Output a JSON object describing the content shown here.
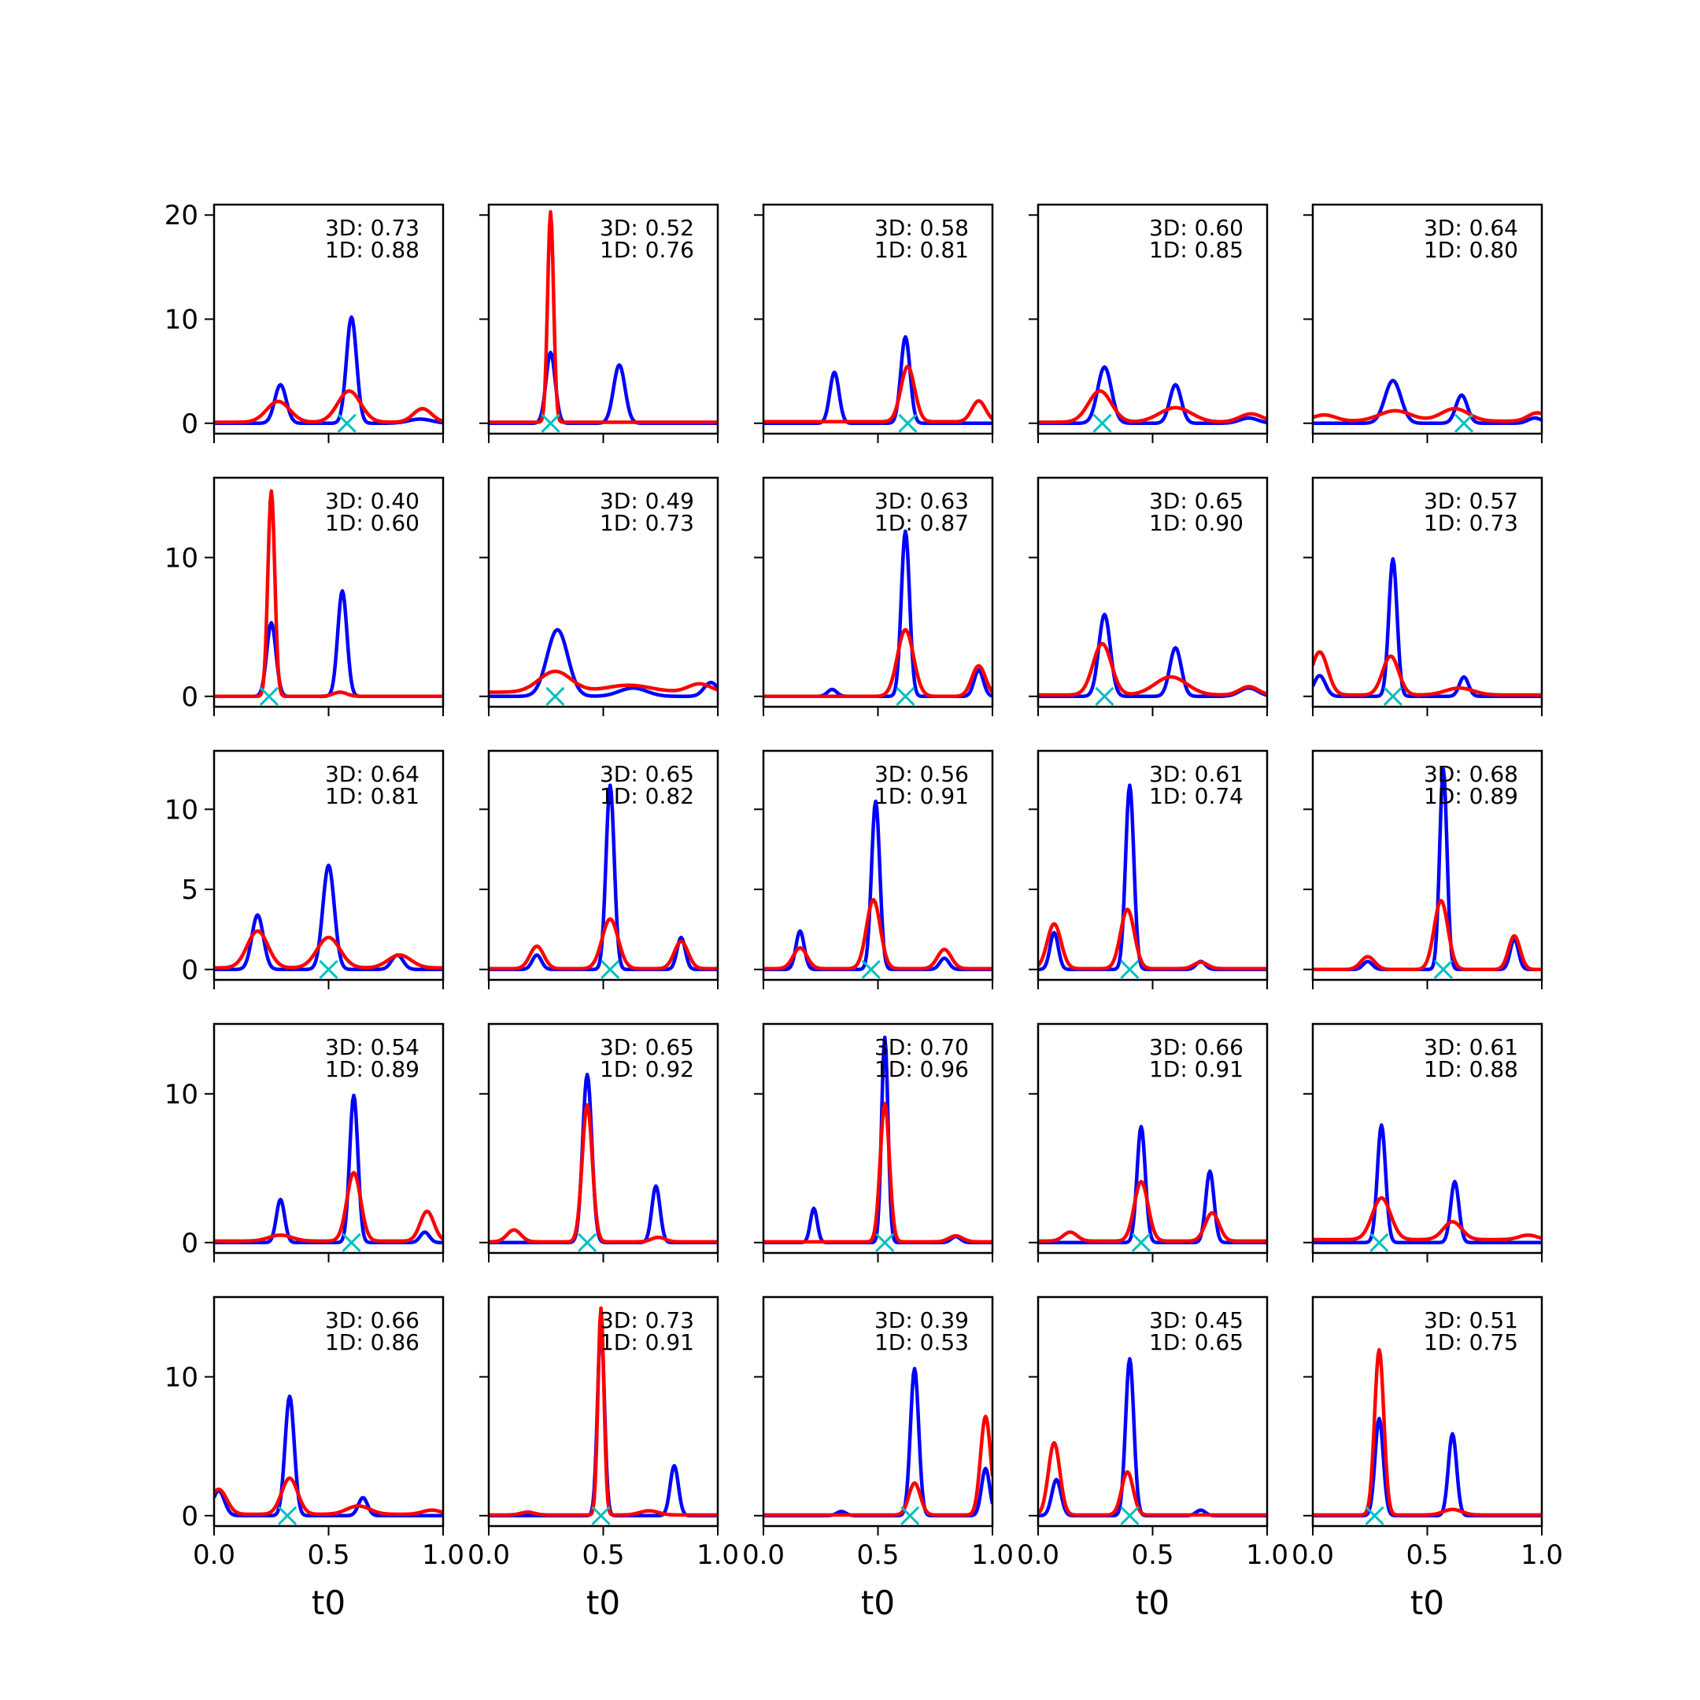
{
  "figure": {
    "rows": 5,
    "cols": 5,
    "xlabel": "t0",
    "xticks": [
      "0.0",
      "0.5",
      "1.0"
    ],
    "row_yticks": [
      {
        "values": [
          0,
          10,
          20
        ],
        "labels": [
          "0",
          "10",
          "20"
        ],
        "ylim": [
          -1,
          21
        ]
      },
      {
        "values": [
          0,
          10
        ],
        "labels": [
          "0",
          "10"
        ],
        "ylim": [
          -0.75,
          15.75
        ]
      },
      {
        "values": [
          0,
          5,
          10
        ],
        "labels": [
          "0",
          "5",
          "10"
        ],
        "ylim": [
          -0.65,
          13.65
        ]
      },
      {
        "values": [
          0,
          10
        ],
        "labels": [
          "0",
          "10"
        ],
        "ylim": [
          -0.7,
          14.7
        ]
      },
      {
        "values": [
          0,
          10
        ],
        "labels": [
          "0",
          "10"
        ],
        "ylim": [
          -0.75,
          15.75
        ]
      }
    ],
    "colors": {
      "blue": "#0000ff",
      "red": "#ff0000",
      "marker": "#00bfbf"
    }
  },
  "chart_data": [
    {
      "type": "line",
      "label_3d": "3D: 0.73",
      "label_1d": "1D: 0.88",
      "marker_x": 0.58,
      "blue": [
        [
          0.29,
          3.7,
          0.025
        ],
        [
          0.6,
          10.2,
          0.022
        ],
        [
          0.9,
          0.4,
          0.05
        ]
      ],
      "red": [
        [
          0.28,
          2.0,
          0.05
        ],
        [
          0.59,
          3.0,
          0.05
        ],
        [
          0.91,
          1.3,
          0.04
        ]
      ],
      "red_base": 0.1
    },
    {
      "type": "line",
      "label_3d": "3D: 0.52",
      "label_1d": "1D: 0.76",
      "marker_x": 0.27,
      "blue": [
        [
          0.27,
          6.8,
          0.02
        ],
        [
          0.57,
          5.6,
          0.025
        ]
      ],
      "red": [
        [
          0.27,
          20.2,
          0.013
        ]
      ],
      "red_base": 0.1
    },
    {
      "type": "line",
      "label_3d": "3D: 0.58",
      "label_1d": "1D: 0.81",
      "marker_x": 0.63,
      "blue": [
        [
          0.31,
          4.9,
          0.02
        ],
        [
          0.62,
          8.3,
          0.02
        ]
      ],
      "red": [
        [
          0.63,
          5.3,
          0.03
        ],
        [
          0.94,
          2.0,
          0.03
        ]
      ],
      "red_base": 0.15
    },
    {
      "type": "line",
      "label_3d": "3D: 0.60",
      "label_1d": "1D: 0.85",
      "marker_x": 0.28,
      "blue": [
        [
          0.29,
          5.4,
          0.03
        ],
        [
          0.6,
          3.7,
          0.025
        ],
        [
          0.92,
          0.5,
          0.04
        ]
      ],
      "red": [
        [
          0.27,
          3.0,
          0.05
        ],
        [
          0.6,
          1.4,
          0.07
        ],
        [
          0.93,
          0.8,
          0.05
        ]
      ],
      "red_base": 0.1
    },
    {
      "type": "line",
      "label_3d": "3D: 0.64",
      "label_1d": "1D: 0.80",
      "marker_x": 0.66,
      "blue": [
        [
          0.35,
          4.1,
          0.035
        ],
        [
          0.65,
          2.7,
          0.025
        ],
        [
          0.97,
          0.5,
          0.03
        ]
      ],
      "red": [
        [
          0.05,
          0.6,
          0.05
        ],
        [
          0.36,
          1.0,
          0.07
        ],
        [
          0.62,
          1.2,
          0.06
        ],
        [
          0.98,
          0.8,
          0.04
        ]
      ],
      "red_base": 0.2
    },
    {
      "type": "line",
      "label_3d": "3D: 0.40",
      "label_1d": "1D: 0.60",
      "marker_x": 0.24,
      "blue": [
        [
          0.25,
          5.3,
          0.02
        ],
        [
          0.56,
          7.6,
          0.02
        ]
      ],
      "red": [
        [
          0.25,
          14.8,
          0.015
        ],
        [
          0.55,
          0.3,
          0.03
        ]
      ],
      "red_base": 0.0
    },
    {
      "type": "line",
      "label_3d": "3D: 0.49",
      "label_1d": "1D: 0.73",
      "marker_x": 0.29,
      "blue": [
        [
          0.3,
          4.8,
          0.045
        ],
        [
          0.63,
          0.6,
          0.06
        ],
        [
          0.97,
          1.0,
          0.03
        ]
      ],
      "red": [
        [
          0.29,
          1.5,
          0.07
        ],
        [
          0.61,
          0.5,
          0.1
        ],
        [
          0.92,
          0.6,
          0.05
        ]
      ],
      "red_base": 0.3
    },
    {
      "type": "line",
      "label_3d": "3D: 0.63",
      "label_1d": "1D: 0.87",
      "marker_x": 0.62,
      "blue": [
        [
          0.3,
          0.5,
          0.02
        ],
        [
          0.62,
          11.9,
          0.018
        ],
        [
          0.94,
          1.9,
          0.02
        ]
      ],
      "red": [
        [
          0.62,
          4.8,
          0.035
        ],
        [
          0.94,
          2.2,
          0.03
        ]
      ],
      "red_base": 0.0
    },
    {
      "type": "line",
      "label_3d": "3D: 0.65",
      "label_1d": "1D: 0.90",
      "marker_x": 0.29,
      "blue": [
        [
          0.29,
          5.9,
          0.025
        ],
        [
          0.6,
          3.5,
          0.025
        ],
        [
          0.92,
          0.6,
          0.04
        ]
      ],
      "red": [
        [
          0.28,
          3.7,
          0.04
        ],
        [
          0.58,
          1.3,
          0.07
        ],
        [
          0.92,
          0.6,
          0.04
        ]
      ],
      "red_base": 0.1
    },
    {
      "type": "line",
      "label_3d": "3D: 0.57",
      "label_1d": "1D: 0.73",
      "marker_x": 0.35,
      "blue": [
        [
          0.03,
          1.5,
          0.025
        ],
        [
          0.35,
          9.9,
          0.018
        ],
        [
          0.66,
          1.4,
          0.02
        ]
      ],
      "red": [
        [
          0.03,
          3.1,
          0.035
        ],
        [
          0.34,
          2.8,
          0.035
        ],
        [
          0.64,
          0.5,
          0.06
        ]
      ],
      "red_base": 0.1
    },
    {
      "type": "line",
      "label_3d": "3D: 0.64",
      "label_1d": "1D: 0.81",
      "marker_x": 0.5,
      "blue": [
        [
          0.19,
          3.4,
          0.025
        ],
        [
          0.5,
          6.5,
          0.025
        ],
        [
          0.8,
          0.9,
          0.025
        ]
      ],
      "red": [
        [
          0.19,
          2.3,
          0.045
        ],
        [
          0.5,
          1.9,
          0.05
        ],
        [
          0.81,
          0.8,
          0.05
        ]
      ],
      "red_base": 0.1
    },
    {
      "type": "line",
      "label_3d": "3D: 0.65",
      "label_1d": "1D: 0.82",
      "marker_x": 0.53,
      "blue": [
        [
          0.21,
          0.9,
          0.02
        ],
        [
          0.53,
          11.5,
          0.018
        ],
        [
          0.84,
          2.0,
          0.018
        ]
      ],
      "red": [
        [
          0.21,
          1.4,
          0.03
        ],
        [
          0.53,
          3.1,
          0.035
        ],
        [
          0.84,
          1.7,
          0.03
        ]
      ],
      "red_base": 0.05
    },
    {
      "type": "line",
      "label_3d": "3D: 0.56",
      "label_1d": "1D: 0.91",
      "marker_x": 0.47,
      "blue": [
        [
          0.16,
          2.4,
          0.018
        ],
        [
          0.49,
          10.5,
          0.018
        ],
        [
          0.79,
          0.7,
          0.02
        ]
      ],
      "red": [
        [
          0.16,
          1.3,
          0.03
        ],
        [
          0.48,
          4.3,
          0.03
        ],
        [
          0.79,
          1.2,
          0.03
        ]
      ],
      "red_base": 0.05
    },
    {
      "type": "line",
      "label_3d": "3D: 0.61",
      "label_1d": "1D: 0.74",
      "marker_x": 0.4,
      "blue": [
        [
          0.07,
          2.3,
          0.018
        ],
        [
          0.4,
          11.5,
          0.018
        ],
        [
          0.71,
          0.5,
          0.02
        ]
      ],
      "red": [
        [
          0.07,
          2.8,
          0.03
        ],
        [
          0.39,
          3.7,
          0.03
        ],
        [
          0.71,
          0.4,
          0.03
        ]
      ],
      "red_base": 0.05
    },
    {
      "type": "line",
      "label_3d": "3D: 0.68",
      "label_1d": "1D: 0.89",
      "marker_x": 0.57,
      "blue": [
        [
          0.24,
          0.5,
          0.02
        ],
        [
          0.57,
          12.5,
          0.016
        ],
        [
          0.88,
          1.9,
          0.018
        ]
      ],
      "red": [
        [
          0.24,
          0.8,
          0.03
        ],
        [
          0.56,
          4.3,
          0.03
        ],
        [
          0.88,
          2.1,
          0.025
        ]
      ],
      "red_base": 0.0
    },
    {
      "type": "line",
      "label_3d": "3D: 0.54",
      "label_1d": "1D: 0.89",
      "marker_x": 0.6,
      "blue": [
        [
          0.29,
          2.9,
          0.018
        ],
        [
          0.61,
          9.9,
          0.018
        ],
        [
          0.92,
          0.7,
          0.02
        ]
      ],
      "red": [
        [
          0.29,
          0.4,
          0.05
        ],
        [
          0.61,
          4.6,
          0.03
        ],
        [
          0.93,
          2.0,
          0.03
        ]
      ],
      "red_base": 0.1
    },
    {
      "type": "line",
      "label_3d": "3D: 0.65",
      "label_1d": "1D: 0.92",
      "marker_x": 0.43,
      "blue": [
        [
          0.43,
          11.3,
          0.02
        ],
        [
          0.73,
          3.8,
          0.018
        ]
      ],
      "red": [
        [
          0.11,
          0.8,
          0.03
        ],
        [
          0.43,
          9.2,
          0.022
        ],
        [
          0.74,
          0.3,
          0.03
        ]
      ],
      "red_base": 0.05
    },
    {
      "type": "line",
      "label_3d": "3D: 0.70",
      "label_1d": "1D: 0.96",
      "marker_x": 0.53,
      "blue": [
        [
          0.22,
          2.3,
          0.015
        ],
        [
          0.53,
          13.8,
          0.014
        ],
        [
          0.84,
          0.4,
          0.02
        ]
      ],
      "red": [
        [
          0.53,
          9.3,
          0.02
        ],
        [
          0.84,
          0.4,
          0.03
        ]
      ],
      "red_base": 0.05
    },
    {
      "type": "line",
      "label_3d": "3D: 0.66",
      "label_1d": "1D: 0.91",
      "marker_x": 0.45,
      "blue": [
        [
          0.45,
          7.8,
          0.018
        ],
        [
          0.75,
          4.8,
          0.018
        ]
      ],
      "red": [
        [
          0.14,
          0.6,
          0.03
        ],
        [
          0.45,
          4.0,
          0.03
        ],
        [
          0.76,
          1.9,
          0.03
        ]
      ],
      "red_base": 0.1
    },
    {
      "type": "line",
      "label_3d": "3D: 0.61",
      "label_1d": "1D: 0.88",
      "marker_x": 0.29,
      "blue": [
        [
          0.3,
          7.9,
          0.018
        ],
        [
          0.62,
          4.1,
          0.018
        ]
      ],
      "red": [
        [
          0.3,
          2.8,
          0.04
        ],
        [
          0.61,
          1.2,
          0.04
        ],
        [
          0.94,
          0.3,
          0.04
        ]
      ],
      "red_base": 0.2
    },
    {
      "type": "line",
      "label_3d": "3D: 0.66",
      "label_1d": "1D: 0.86",
      "marker_x": 0.32,
      "blue": [
        [
          0.02,
          1.8,
          0.025
        ],
        [
          0.33,
          8.6,
          0.02
        ],
        [
          0.65,
          1.3,
          0.02
        ]
      ],
      "red": [
        [
          0.02,
          1.8,
          0.035
        ],
        [
          0.33,
          2.6,
          0.035
        ],
        [
          0.63,
          0.6,
          0.05
        ],
        [
          0.95,
          0.3,
          0.04
        ]
      ],
      "red_base": 0.1
    },
    {
      "type": "line",
      "label_3d": "3D: 0.73",
      "label_1d": "1D: 0.91",
      "marker_x": 0.49,
      "blue": [
        [
          0.49,
          13.7,
          0.015
        ],
        [
          0.81,
          3.6,
          0.018
        ]
      ],
      "red": [
        [
          0.49,
          14.9,
          0.013
        ],
        [
          0.17,
          0.2,
          0.03
        ],
        [
          0.7,
          0.3,
          0.04
        ]
      ],
      "red_base": 0.05
    },
    {
      "type": "line",
      "label_3d": "3D: 0.39",
      "label_1d": "1D: 0.53",
      "marker_x": 0.64,
      "blue": [
        [
          0.34,
          0.3,
          0.02
        ],
        [
          0.66,
          10.6,
          0.018
        ],
        [
          0.97,
          3.4,
          0.018
        ]
      ],
      "red": [
        [
          0.66,
          2.3,
          0.025
        ],
        [
          0.97,
          7.1,
          0.022
        ]
      ],
      "red_base": 0.05
    },
    {
      "type": "line",
      "label_3d": "3D: 0.45",
      "label_1d": "1D: 0.65",
      "marker_x": 0.4,
      "blue": [
        [
          0.08,
          2.6,
          0.02
        ],
        [
          0.4,
          11.3,
          0.018
        ],
        [
          0.71,
          0.4,
          0.02
        ]
      ],
      "red": [
        [
          0.07,
          5.2,
          0.025
        ],
        [
          0.39,
          3.1,
          0.025
        ]
      ],
      "red_base": 0.05
    },
    {
      "type": "line",
      "label_3d": "3D: 0.51",
      "label_1d": "1D: 0.75",
      "marker_x": 0.27,
      "blue": [
        [
          0.29,
          7.0,
          0.018
        ],
        [
          0.61,
          5.9,
          0.018
        ]
      ],
      "red": [
        [
          0.29,
          11.9,
          0.02
        ],
        [
          0.61,
          0.4,
          0.04
        ]
      ],
      "red_base": 0.05
    }
  ]
}
